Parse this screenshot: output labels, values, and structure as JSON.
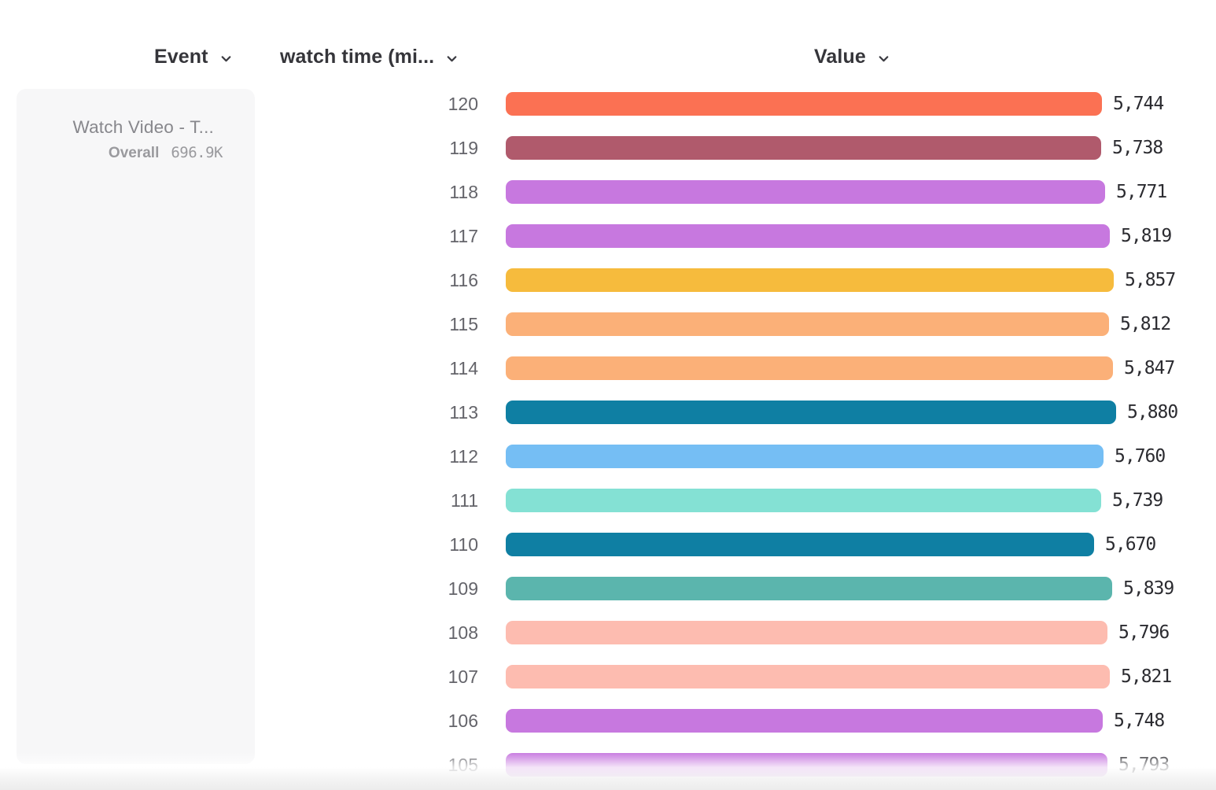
{
  "header": {
    "event_label": "Event",
    "watch_time_label": "watch time (mi...",
    "value_label": "Value"
  },
  "event_card": {
    "title": "Watch Video - T...",
    "overall_label": "Overall",
    "overall_value": "696.9K"
  },
  "chart_data": {
    "type": "bar",
    "orientation": "horizontal",
    "title": "Value by watch time (minutes)",
    "xlabel": "Value",
    "ylabel": "watch time (minutes)",
    "xlim": [
      0,
      5880
    ],
    "grid": false,
    "categories": [
      "120",
      "119",
      "118",
      "117",
      "116",
      "115",
      "114",
      "113",
      "112",
      "111",
      "110",
      "109",
      "108",
      "107",
      "106",
      "105"
    ],
    "values": [
      5744,
      5738,
      5771,
      5819,
      5857,
      5812,
      5847,
      5880,
      5760,
      5739,
      5670,
      5839,
      5796,
      5821,
      5748,
      5793
    ],
    "value_labels": [
      "5,744",
      "5,738",
      "5,771",
      "5,819",
      "5,857",
      "5,812",
      "5,847",
      "5,880",
      "5,760",
      "5,739",
      "5,670",
      "5,839",
      "5,796",
      "5,821",
      "5,748",
      "5,793"
    ],
    "colors": [
      "#FB7153",
      "#B05A6C",
      "#C778DF",
      "#C778DF",
      "#F6BB3D",
      "#FBB078",
      "#FBB078",
      "#0F7FA3",
      "#75BEF4",
      "#84E1D4",
      "#0F7FA3",
      "#5BB5AD",
      "#FDBCB0",
      "#FDBCB0",
      "#C778DF",
      "#C778DF"
    ]
  },
  "icons": {
    "chevron_color": "#3a3a40"
  }
}
